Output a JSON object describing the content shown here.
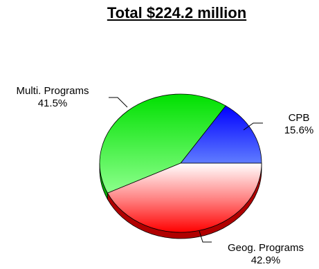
{
  "chart_data": {
    "type": "pie",
    "title": "Total $224.2 million",
    "slices": [
      {
        "label": "CPB",
        "percent_label": "15.6%",
        "value": 15.6,
        "color": "#0a2cf0"
      },
      {
        "label": "Multi. Programs",
        "percent_label": "41.5%",
        "value": 41.5,
        "color": "#22ee22"
      },
      {
        "label": "Geog. Programs",
        "percent_label": "42.9%",
        "value": 42.9,
        "color": "#ee1b1b"
      }
    ]
  }
}
